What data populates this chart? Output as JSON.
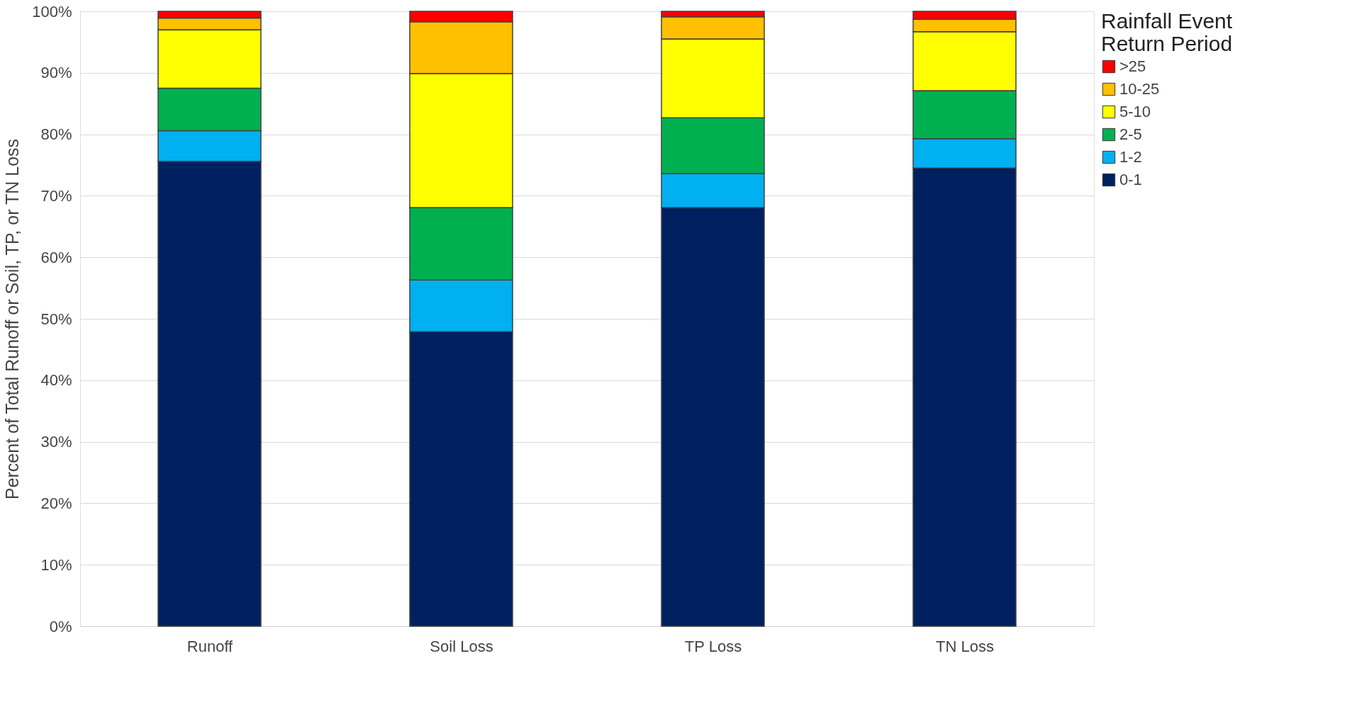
{
  "chart_data": {
    "type": "bar",
    "stacked": true,
    "ylabel": "Percent of Total Runoff or Soil, TP, or TN Loss",
    "legend_title": "Rainfall Event\nReturn Period",
    "legend": "right",
    "grid": "y",
    "categories": [
      "Runoff",
      "Soil Loss",
      "TP Loss",
      "TN Loss"
    ],
    "ylim": [
      0,
      100
    ],
    "yticks": [
      {
        "value": 0,
        "label": "0%"
      },
      {
        "value": 10,
        "label": "10%"
      },
      {
        "value": 20,
        "label": "20%"
      },
      {
        "value": 30,
        "label": "30%"
      },
      {
        "value": 40,
        "label": "40%"
      },
      {
        "value": 50,
        "label": "50%"
      },
      {
        "value": 60,
        "label": "60%"
      },
      {
        "value": 70,
        "label": "70%"
      },
      {
        "value": 80,
        "label": "80%"
      },
      {
        "value": 90,
        "label": "90%"
      },
      {
        "value": 100,
        "label": "100%"
      }
    ],
    "series": [
      {
        "name": "0-1",
        "color": "#002060",
        "values": [
          75.6,
          47.9,
          68.1,
          74.5
        ]
      },
      {
        "name": "1-2",
        "color": "#00b0f0",
        "values": [
          5.0,
          8.4,
          5.5,
          4.8
        ]
      },
      {
        "name": "2-5",
        "color": "#00b050",
        "values": [
          6.9,
          11.8,
          9.1,
          7.8
        ]
      },
      {
        "name": "5-10",
        "color": "#ffff00",
        "values": [
          9.5,
          21.8,
          12.8,
          9.6
        ]
      },
      {
        "name": "10-25",
        "color": "#ffc000",
        "values": [
          1.9,
          8.4,
          3.6,
          2.0
        ]
      },
      {
        "name": ">25",
        "color": "#ff0000",
        "values": [
          1.1,
          1.7,
          0.9,
          1.3
        ]
      }
    ]
  }
}
